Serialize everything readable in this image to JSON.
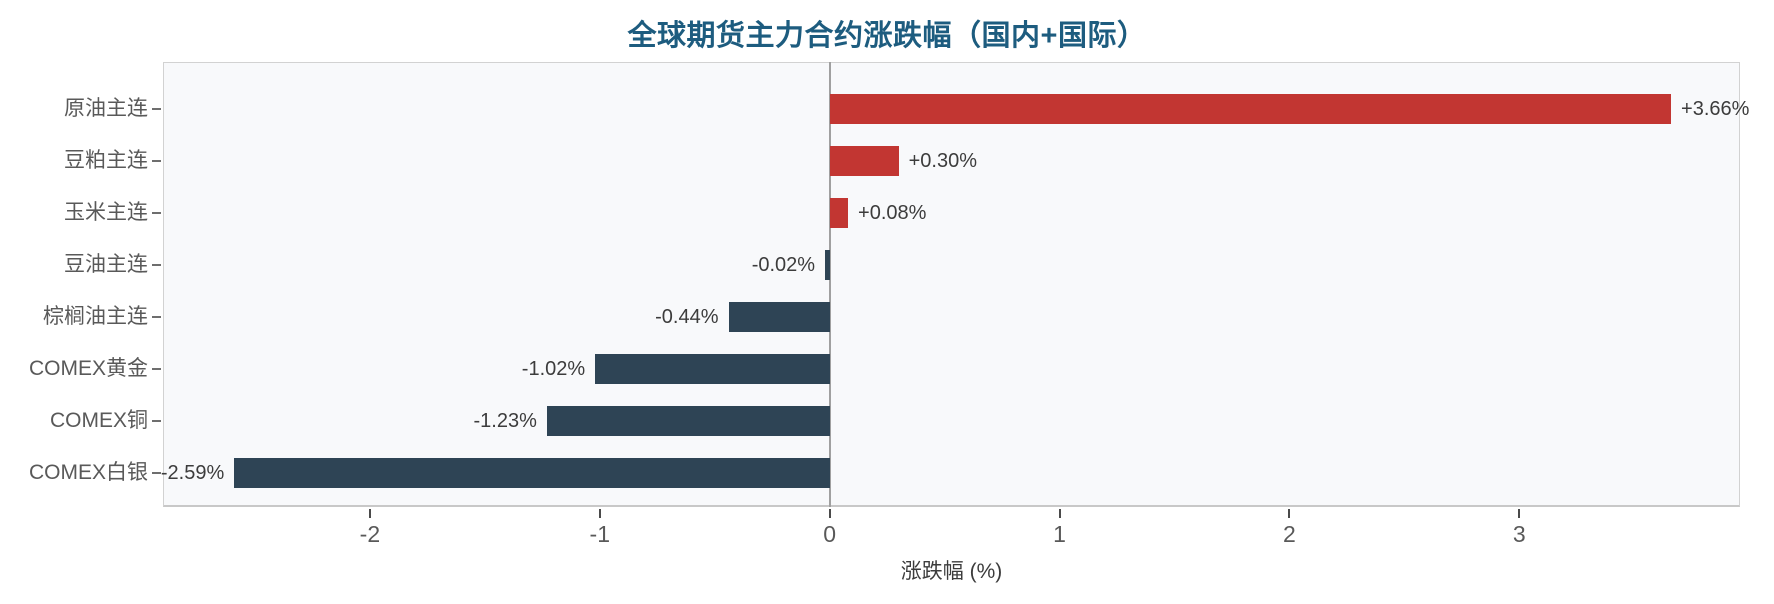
{
  "chart_data": {
    "type": "bar",
    "orientation": "horizontal",
    "title": "全球期货主力合约涨跌幅（国内+国际）",
    "xlabel": "涨跌幅 (%)",
    "ylabel": "",
    "categories": [
      "原油主连",
      "豆粕主连",
      "玉米主连",
      "豆油主连",
      "棕榈油主连",
      "COMEX黄金",
      "COMEX铜",
      "COMEX白银"
    ],
    "values": [
      3.66,
      0.3,
      0.08,
      -0.02,
      -0.44,
      -1.02,
      -1.23,
      -2.59
    ],
    "value_labels": [
      "+3.66%",
      "+0.30%",
      "+0.08%",
      "-0.02%",
      "-0.44%",
      "-1.02%",
      "-1.23%",
      "-2.59%"
    ],
    "xticks": [
      -2,
      -1,
      0,
      1,
      2,
      3
    ],
    "xtick_labels": [
      "-2",
      "-1",
      "0",
      "1",
      "2",
      "3"
    ],
    "xlim": [
      -2.9,
      3.96
    ],
    "grid": false,
    "legend": null,
    "colors": {
      "positive_bar": "#c23632",
      "negative_bar": "#2e4455",
      "title_text": "#1d5c7f",
      "plot_background": "#f8f9fb",
      "plot_border": "#d2d2d2",
      "zero_line": "#a0a0a0",
      "axis_text": "#595959",
      "value_text": "#3c3c3c",
      "axis_title_text": "#3c3c3c"
    }
  }
}
